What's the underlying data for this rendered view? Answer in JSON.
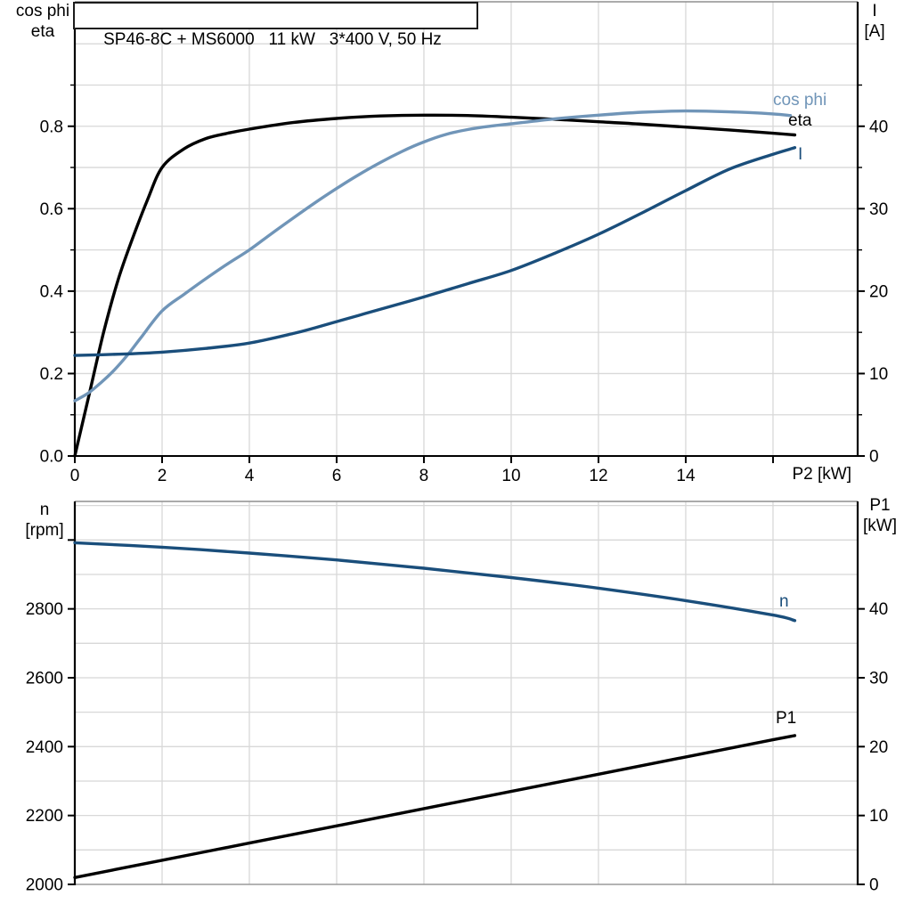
{
  "header": {
    "title": "SP46-8C + MS6000   11 kW   3*400 V, 50 Hz"
  },
  "colors": {
    "black": "#000000",
    "steel_blue": "#7095b8",
    "navy": "#1a4e7b",
    "grid": "#d8d8d8",
    "border_gray": "#8f8f8f",
    "axis": "#000000"
  },
  "chart_data": [
    {
      "type": "line",
      "name": "motor-electrical-curves",
      "title": "SP46-8C + MS6000   11 kW   3*400 V, 50 Hz",
      "x_axis": {
        "label": "P2 [kW]",
        "min": 0,
        "max": 17.94,
        "ticks": [
          0,
          2,
          4,
          6,
          8,
          10,
          12,
          14,
          16
        ],
        "tick_labels": [
          "0",
          "2",
          "4",
          "6",
          "8",
          "10",
          "12",
          "14"
        ],
        "grid": [
          2,
          4,
          6,
          8,
          10,
          12,
          14,
          16
        ]
      },
      "left_axis": {
        "label_line1": "cos phi",
        "label_line2": "eta",
        "min": 0,
        "max": 1.102,
        "tick_values": [
          0,
          0.2,
          0.4,
          0.6,
          0.8
        ],
        "tick_labels": [
          "0.0",
          "0.2",
          "0.4",
          "0.6",
          "0.8"
        ],
        "minor_ticks": [
          0.1,
          0.3,
          0.5,
          0.7,
          0.9
        ],
        "extra_ticks": [],
        "grid": [
          0.1,
          0.2,
          0.3,
          0.4,
          0.5,
          0.6,
          0.7,
          0.8,
          0.9,
          1.0
        ]
      },
      "right_axis": {
        "label_line1": "I",
        "label_line2": "[A]",
        "min": 0,
        "max": 55.1,
        "tick_values": [
          0,
          10,
          20,
          30,
          40
        ],
        "tick_labels": [
          "0",
          "10",
          "20",
          "30",
          "40"
        ],
        "minor_ticks": [
          5,
          15,
          25,
          35,
          45
        ],
        "extra_ticks": []
      },
      "series": [
        {
          "label": "eta",
          "color_key": "black",
          "axis": "left",
          "points": [
            [
              0,
              0
            ],
            [
              0.33,
              0.15
            ],
            [
              0.66,
              0.3
            ],
            [
              1,
              0.43
            ],
            [
              1.33,
              0.53
            ],
            [
              1.66,
              0.62
            ],
            [
              2,
              0.7
            ],
            [
              2.5,
              0.745
            ],
            [
              3,
              0.77
            ],
            [
              3.5,
              0.783
            ],
            [
              4,
              0.793
            ],
            [
              5,
              0.809
            ],
            [
              6,
              0.819
            ],
            [
              7,
              0.825
            ],
            [
              8,
              0.827
            ],
            [
              9,
              0.826
            ],
            [
              10,
              0.822
            ],
            [
              11,
              0.817
            ],
            [
              12,
              0.811
            ],
            [
              13,
              0.805
            ],
            [
              14,
              0.798
            ],
            [
              15,
              0.791
            ],
            [
              16,
              0.783
            ],
            [
              16.5,
              0.779
            ]
          ]
        },
        {
          "label": "cos phi",
          "color_key": "steel_blue",
          "axis": "left",
          "points": [
            [
              0,
              0.134
            ],
            [
              0.3,
              0.152
            ],
            [
              0.6,
              0.178
            ],
            [
              0.9,
              0.208
            ],
            [
              1.2,
              0.244
            ],
            [
              1.5,
              0.285
            ],
            [
              2,
              0.352
            ],
            [
              2.5,
              0.392
            ],
            [
              3,
              0.43
            ],
            [
              3.5,
              0.466
            ],
            [
              4,
              0.5
            ],
            [
              4.5,
              0.539
            ],
            [
              5,
              0.577
            ],
            [
              5.5,
              0.614
            ],
            [
              6,
              0.649
            ],
            [
              6.5,
              0.682
            ],
            [
              7,
              0.712
            ],
            [
              7.5,
              0.739
            ],
            [
              8,
              0.762
            ],
            [
              8.5,
              0.78
            ],
            [
              9,
              0.792
            ],
            [
              9.5,
              0.8
            ],
            [
              10,
              0.806
            ],
            [
              11,
              0.818
            ],
            [
              12,
              0.827
            ],
            [
              13,
              0.834
            ],
            [
              14,
              0.837
            ],
            [
              15,
              0.835
            ],
            [
              16,
              0.83
            ],
            [
              16.4,
              0.826
            ]
          ]
        },
        {
          "label": "I",
          "color_key": "navy",
          "axis": "right",
          "points": [
            [
              0,
              12.2
            ],
            [
              1,
              12.35
            ],
            [
              2,
              12.6
            ],
            [
              3,
              13.05
            ],
            [
              4,
              13.7
            ],
            [
              5,
              14.85
            ],
            [
              5.5,
              15.55
            ],
            [
              6,
              16.3
            ],
            [
              6.5,
              17.05
            ],
            [
              7,
              17.8
            ],
            [
              8,
              19.3
            ],
            [
              9,
              20.9
            ],
            [
              10,
              22.5
            ],
            [
              11,
              24.6
            ],
            [
              12,
              26.9
            ],
            [
              13,
              29.5
            ],
            [
              14,
              32.2
            ],
            [
              15,
              34.8
            ],
            [
              16,
              36.6
            ],
            [
              16.5,
              37.4
            ]
          ]
        }
      ]
    },
    {
      "type": "line",
      "name": "speed-and-input-power-curves",
      "x_axis": {
        "label": "",
        "min": 0,
        "max": 17.94,
        "ticks": [],
        "tick_labels": [],
        "grid": [
          2,
          4,
          6,
          8,
          10,
          12,
          14,
          16
        ]
      },
      "left_axis": {
        "label_line1": "n",
        "label_line2": "[rpm]",
        "min": 2000,
        "max": 3112,
        "tick_values": [
          2000,
          2200,
          2400,
          2600,
          2800
        ],
        "tick_labels": [
          "2000",
          "2200",
          "2400",
          "2600",
          "2800"
        ],
        "minor_ticks": [],
        "extra_ticks": [
          3000
        ],
        "grid": [
          2100,
          2200,
          2300,
          2400,
          2500,
          2600,
          2700,
          2800,
          2900,
          3000,
          3100
        ]
      },
      "right_axis": {
        "label_line1": "P1",
        "label_line2": "[kW]",
        "min": 0,
        "max": 55.6,
        "tick_values": [
          0,
          10,
          20,
          30,
          40
        ],
        "tick_labels": [
          "0",
          "10",
          "20",
          "30",
          "40"
        ],
        "minor_ticks": [],
        "extra_ticks": []
      },
      "series": [
        {
          "label": "n",
          "color_key": "navy",
          "axis": "left",
          "points": [
            [
              0,
              2992
            ],
            [
              2,
              2979
            ],
            [
              4,
              2962
            ],
            [
              6,
              2942
            ],
            [
              8,
              2918
            ],
            [
              10,
              2891
            ],
            [
              12,
              2860
            ],
            [
              14,
              2824
            ],
            [
              16,
              2782
            ],
            [
              16.5,
              2766
            ]
          ]
        },
        {
          "label": "P1",
          "color_key": "black",
          "axis": "right",
          "points": [
            [
              0,
              1.0
            ],
            [
              2,
              3.5
            ],
            [
              4,
              6.0
            ],
            [
              6,
              8.5
            ],
            [
              8,
              11.0
            ],
            [
              10,
              13.5
            ],
            [
              12,
              16.0
            ],
            [
              14,
              18.5
            ],
            [
              16,
              21.0
            ],
            [
              16.5,
              21.6
            ]
          ]
        }
      ]
    }
  ]
}
